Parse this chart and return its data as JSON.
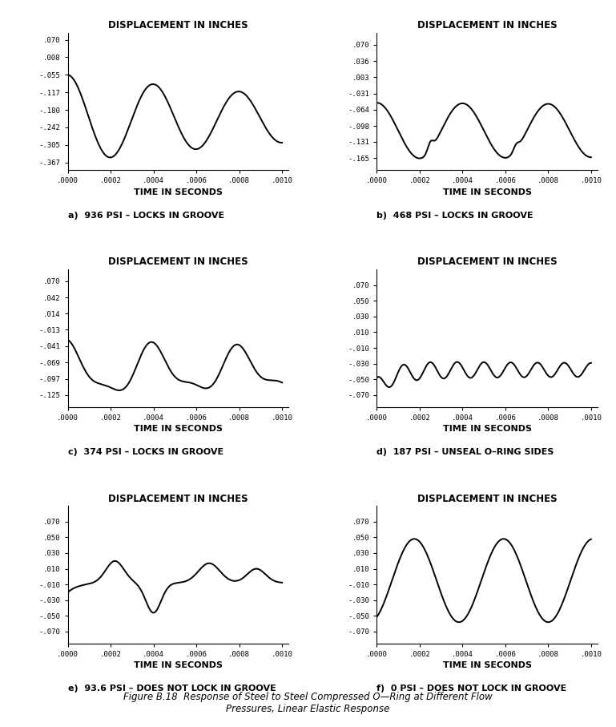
{
  "title": "Figure B.18  Response of Steel to Steel Compressed O—Ring at Different Flow\nPressures, Linear Elastic Response",
  "subplots": [
    {
      "label": "a)  936 PSI – LOCKS IN GROOVE",
      "ytick_vals": [
        0.07,
        0.008,
        -0.055,
        -0.117,
        -0.18,
        -0.242,
        -0.305,
        -0.367
      ],
      "ytick_strs": [
        ".070",
        ".008",
        "-.055",
        "-.117",
        "-.180",
        "-.242",
        "-.305",
        "-.367"
      ],
      "ylim": [
        -0.395,
        0.095
      ]
    },
    {
      "label": "b)  468 PSI – LOCKS IN GROOVE",
      "ytick_vals": [
        0.07,
        0.036,
        0.003,
        -0.031,
        -0.064,
        -0.098,
        -0.131,
        -0.165
      ],
      "ytick_strs": [
        ".070",
        ".036",
        ".003",
        "-.031",
        "-.064",
        "-.098",
        "-.131",
        "-.165"
      ],
      "ylim": [
        -0.19,
        0.095
      ]
    },
    {
      "label": "c)  374 PSI – LOCKS IN GROOVE",
      "ytick_vals": [
        0.07,
        0.042,
        0.014,
        -0.013,
        -0.041,
        -0.069,
        -0.097,
        -0.125
      ],
      "ytick_strs": [
        ".070",
        ".042",
        ".014",
        "-.013",
        "-.041",
        "-.069",
        "-.097",
        "-.125"
      ],
      "ylim": [
        -0.145,
        0.09
      ]
    },
    {
      "label": "d)  187 PSI – UNSEAL O–RING SIDES",
      "ytick_vals": [
        0.07,
        0.05,
        0.03,
        0.01,
        -0.01,
        -0.03,
        -0.05,
        -0.07
      ],
      "ytick_strs": [
        ".070",
        ".050",
        ".030",
        ".010",
        "-.010",
        "-.030",
        "-.050",
        "-.070"
      ],
      "ylim": [
        -0.085,
        0.09
      ]
    },
    {
      "label": "e)  93.6 PSI – DOES NOT LOCK IN GROOVE",
      "ytick_vals": [
        0.07,
        0.05,
        0.03,
        0.01,
        -0.01,
        -0.03,
        -0.05,
        -0.07
      ],
      "ytick_strs": [
        ".070",
        ".050",
        ".030",
        ".010",
        "-.010",
        "-.030",
        "-.050",
        "-.070"
      ],
      "ylim": [
        -0.085,
        0.09
      ]
    },
    {
      "label": "f)  0 PSI – DOES NOT LOCK IN GROOVE",
      "ytick_vals": [
        0.07,
        0.05,
        0.03,
        0.01,
        -0.01,
        -0.03,
        -0.05,
        -0.07
      ],
      "ytick_strs": [
        ".070",
        ".050",
        ".030",
        ".010",
        "-.010",
        "-.030",
        "-.050",
        "-.070"
      ],
      "ylim": [
        -0.085,
        0.09
      ]
    }
  ],
  "xtick_vals": [
    0.0,
    0.0002,
    0.0004,
    0.0006,
    0.0008,
    0.001
  ],
  "xtick_strs": [
    ".0000",
    ".0002",
    ".0004",
    ".0006",
    ".0008",
    ".0010"
  ],
  "xlim": [
    0.0,
    0.00103
  ],
  "xlabel": "TIME IN SECONDS",
  "ylabel": "DISPLACEMENT IN INCHES",
  "line_color": "#000000",
  "line_width": 1.4,
  "bg_color": "#ffffff"
}
